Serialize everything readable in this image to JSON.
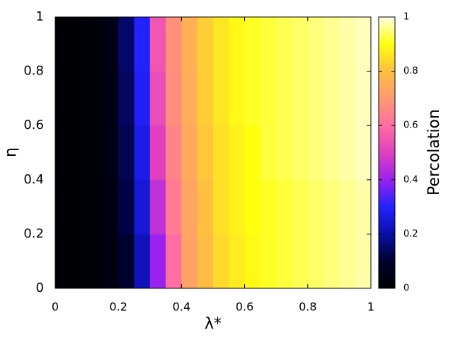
{
  "chart_data": {
    "type": "heatmap",
    "x_label": "λ*",
    "y_label": "η",
    "colorbar_label": "Percolation",
    "x": [
      0.025,
      0.075,
      0.125,
      0.175,
      0.225,
      0.275,
      0.325,
      0.375,
      0.425,
      0.475,
      0.525,
      0.575,
      0.625,
      0.675,
      0.725,
      0.775,
      0.825,
      0.875,
      0.925,
      0.975
    ],
    "y": [
      0.1,
      0.3,
      0.5,
      0.7,
      0.9
    ],
    "z": [
      [
        0.01,
        0.01,
        0.02,
        0.04,
        0.1,
        0.22,
        0.4,
        0.6,
        0.72,
        0.79,
        0.84,
        0.87,
        0.89,
        0.91,
        0.92,
        0.93,
        0.94,
        0.95,
        0.96,
        0.97
      ],
      [
        0.01,
        0.01,
        0.02,
        0.04,
        0.12,
        0.25,
        0.45,
        0.63,
        0.73,
        0.8,
        0.85,
        0.88,
        0.9,
        0.91,
        0.92,
        0.93,
        0.94,
        0.95,
        0.96,
        0.97
      ],
      [
        0.01,
        0.01,
        0.02,
        0.05,
        0.13,
        0.27,
        0.5,
        0.65,
        0.74,
        0.81,
        0.85,
        0.88,
        0.9,
        0.92,
        0.93,
        0.94,
        0.95,
        0.96,
        0.97,
        0.98
      ],
      [
        0.01,
        0.01,
        0.02,
        0.05,
        0.14,
        0.29,
        0.53,
        0.67,
        0.75,
        0.82,
        0.86,
        0.89,
        0.91,
        0.92,
        0.93,
        0.94,
        0.95,
        0.96,
        0.97,
        0.98
      ],
      [
        0.01,
        0.01,
        0.02,
        0.05,
        0.15,
        0.3,
        0.55,
        0.68,
        0.76,
        0.82,
        0.86,
        0.89,
        0.91,
        0.92,
        0.93,
        0.94,
        0.95,
        0.96,
        0.97,
        0.98
      ]
    ],
    "palette": [
      "#000000",
      "#00002e",
      "#0a0fa8",
      "#2222ff",
      "#9a22ee",
      "#e040c0",
      "#ff6ea0",
      "#ff9a70",
      "#ffc040",
      "#ffff10",
      "#ffffe8"
    ],
    "xlim": [
      0,
      1
    ],
    "ylim": [
      0,
      1
    ],
    "zlim": [
      0,
      1
    ],
    "xticks": [
      0,
      0.2,
      0.4,
      0.6,
      0.8,
      1
    ],
    "yticks": [
      0,
      0.2,
      0.4,
      0.6,
      0.8,
      1
    ],
    "zticks": [
      0,
      0.2,
      0.4,
      0.6,
      0.8,
      1
    ]
  }
}
